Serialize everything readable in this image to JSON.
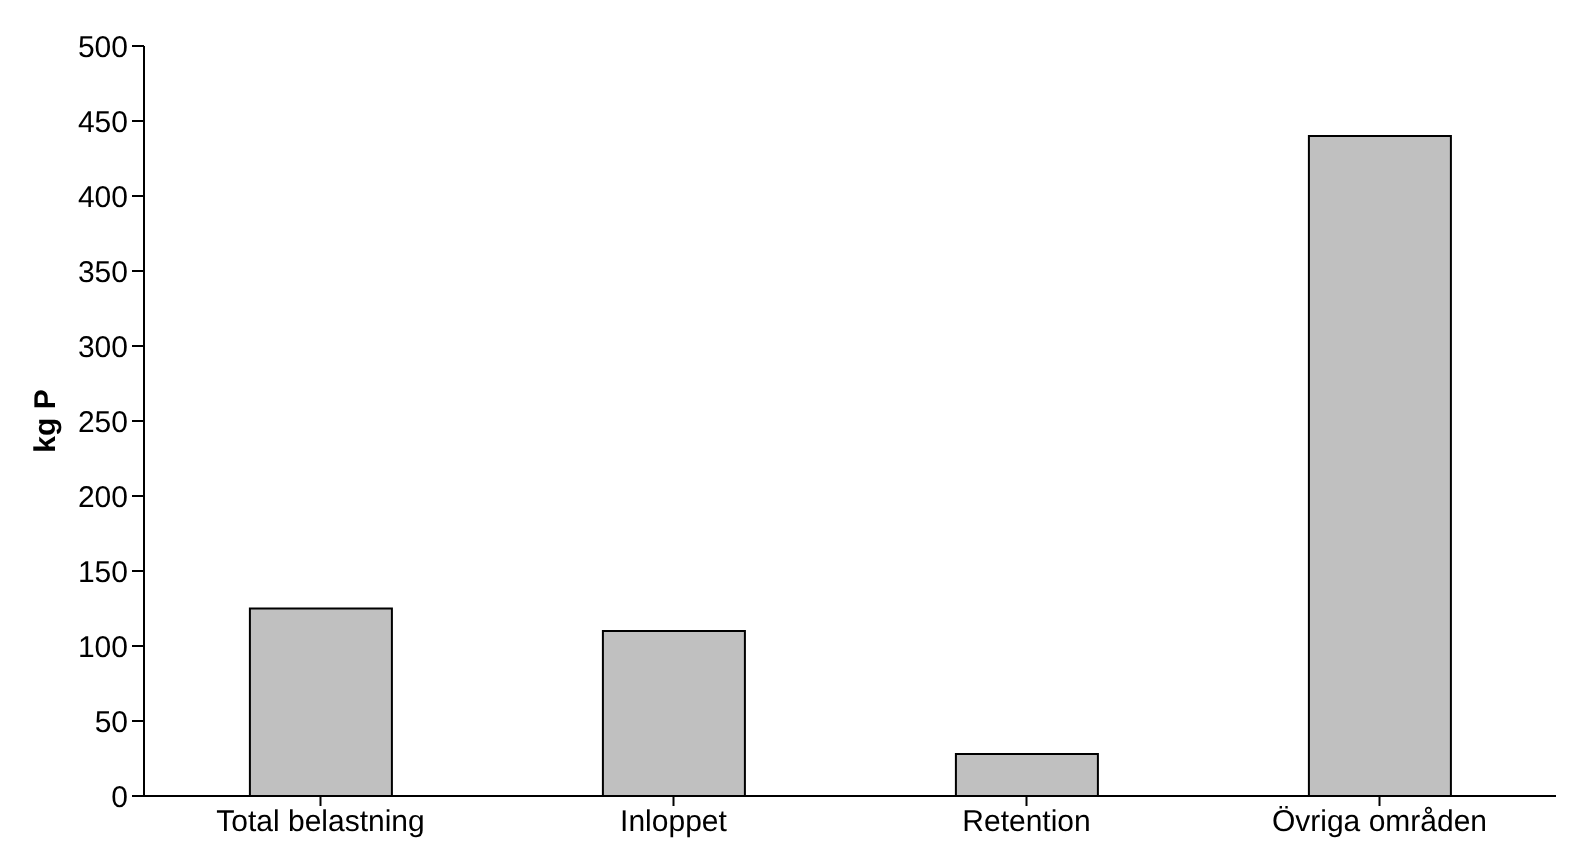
{
  "chart_data": {
    "type": "bar",
    "ylabel": "kg P",
    "categories": [
      "Total belastning",
      "Inloppet",
      "Retention",
      "Övriga områden"
    ],
    "values": [
      125,
      110,
      28,
      440
    ],
    "color": "#c0c0c0",
    "ylim": [
      0,
      500
    ],
    "yticks": [
      0,
      50,
      100,
      150,
      200,
      250,
      300,
      350,
      400,
      450,
      500
    ],
    "grid": false,
    "legend": false
  }
}
